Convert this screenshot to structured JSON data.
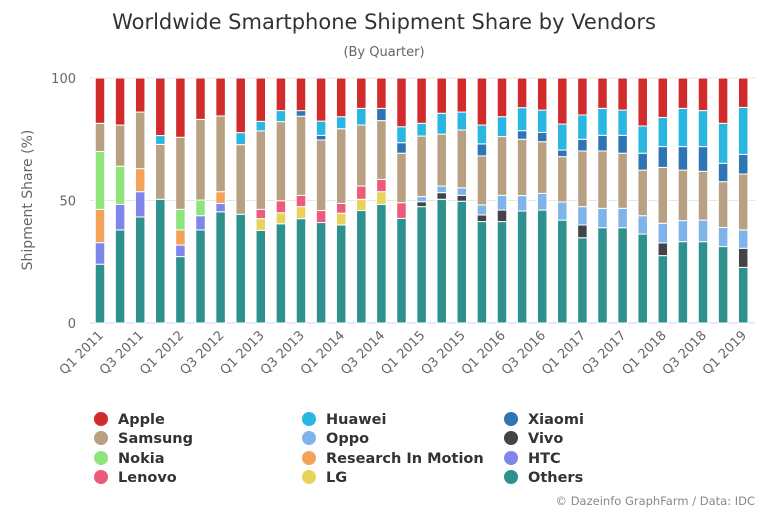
{
  "chart_data": {
    "type": "bar",
    "stacked": true,
    "title": "Worldwide Smartphone Shipment Share by Vendors",
    "subtitle": "(By Quarter)",
    "xlabel": "",
    "ylabel": "Shipment Share (%)",
    "ylim": [
      0,
      100
    ],
    "yticks": [
      "0",
      "50",
      "100"
    ],
    "grid": true,
    "legend_position": "bottom",
    "credit": "© Dazeinfo GraphFarm / Data: IDC",
    "categories": [
      "Q1 2011",
      "Q2 2011",
      "Q3 2011",
      "Q4 2011",
      "Q1 2012",
      "Q2 2012",
      "Q3 2012",
      "Q4 2012",
      "Q1 2013",
      "Q2 2013",
      "Q3 2013",
      "Q4 2013",
      "Q1 2014",
      "Q2 2014",
      "Q3 2014",
      "Q4 2014",
      "Q1 2015",
      "Q2 2015",
      "Q3 2015",
      "Q4 2015",
      "Q1 2016",
      "Q2 2016",
      "Q3 2016",
      "Q4 2016",
      "Q1 2017",
      "Q2 2017",
      "Q3 2017",
      "Q4 2017",
      "Q1 2018",
      "Q2 2018",
      "Q3 2018",
      "Q4 2018",
      "Q1 2019"
    ],
    "xtick_labels": [
      "Q1 2011",
      "Q3 2011",
      "Q1 2012",
      "Q3 2012",
      "Q1 2013",
      "Q3 2013",
      "Q1 2014",
      "Q3 2014",
      "Q1 2015",
      "Q3 2015",
      "Q1 2016",
      "Q3 2016",
      "Q1 2017",
      "Q3 2017",
      "Q1 2018",
      "Q3 2018",
      "Q1 2019"
    ],
    "series": [
      {
        "name": "Others",
        "color": "#2e918d",
        "values": [
          24,
          38,
          43.3,
          50.5,
          27.1,
          38,
          45.4,
          44.4,
          37.8,
          40.5,
          42.6,
          41,
          40,
          45.9,
          48.4,
          42.7,
          47.5,
          50.5,
          49.7,
          41.4,
          41.4,
          45.7,
          46.1,
          42,
          34.8,
          38.9,
          38.9,
          36.3,
          27.5,
          33.2,
          33.2,
          31.2,
          22.7
        ]
      },
      {
        "name": "HTC",
        "color": "#8085e9",
        "values": [
          8.8,
          10.4,
          10.3,
          0,
          4.7,
          5.8,
          3.4,
          0,
          0,
          0,
          0,
          0,
          0,
          0,
          0,
          0,
          0,
          0,
          0,
          0,
          0,
          0,
          0,
          0,
          0,
          0,
          0,
          0,
          0,
          0,
          0,
          0,
          0
        ]
      },
      {
        "name": "Research In Motion",
        "color": "#f4a25a",
        "values": [
          13.6,
          0,
          9.4,
          0,
          6.2,
          0,
          4.8,
          0,
          0,
          0,
          0,
          0,
          0,
          0,
          0,
          0,
          0,
          0,
          0,
          0,
          0,
          0,
          0,
          0,
          0,
          0,
          0,
          0,
          0,
          0,
          0,
          0,
          0
        ]
      },
      {
        "name": "Nokia",
        "color": "#8ee57a",
        "values": [
          23.6,
          15.6,
          0,
          0,
          8.4,
          6.4,
          0,
          0,
          0,
          0,
          0,
          0,
          0,
          0,
          0,
          0,
          0,
          0,
          0,
          0,
          0,
          0,
          0,
          0,
          0,
          0,
          0,
          0,
          0,
          0,
          0,
          0,
          0
        ]
      },
      {
        "name": "LG",
        "color": "#e8d35a",
        "values": [
          0,
          0,
          0,
          0,
          0,
          0,
          0,
          0,
          4.8,
          4.5,
          4.9,
          0,
          4.8,
          4.6,
          5.2,
          0,
          0,
          0,
          0,
          0,
          0,
          0,
          0,
          0,
          0,
          0,
          0,
          0,
          0,
          0,
          0,
          0,
          0
        ]
      },
      {
        "name": "Lenovo",
        "color": "#ec5a7c",
        "values": [
          0,
          0,
          0,
          0,
          0,
          0,
          0,
          0,
          3.8,
          4.9,
          4.6,
          4.9,
          4,
          5.4,
          5,
          6.4,
          0,
          0,
          0,
          0,
          0,
          0,
          0,
          0,
          0,
          0,
          0,
          0,
          0,
          0,
          0,
          0,
          0
        ]
      },
      {
        "name": "Vivo",
        "color": "#434348",
        "values": [
          0,
          0,
          0,
          0,
          0,
          0,
          0,
          0,
          0,
          0,
          0,
          0,
          0,
          0,
          0,
          0,
          2,
          2.7,
          2.4,
          2.7,
          4.7,
          0,
          0,
          0,
          5.2,
          0,
          0,
          0,
          5.2,
          0,
          0,
          0,
          7.8
        ]
      },
      {
        "name": "Oppo",
        "color": "#7eb4ea",
        "values": [
          0,
          0,
          0,
          0,
          0,
          0,
          0,
          0,
          0,
          0,
          0,
          0,
          0,
          0,
          0,
          0,
          2.1,
          2.7,
          3.1,
          4.1,
          6,
          6.3,
          6.8,
          7.4,
          7.5,
          7.9,
          7.9,
          7.5,
          8,
          8.6,
          8.8,
          7.8,
          7.5
        ]
      },
      {
        "name": "Samsung",
        "color": "#b8a083",
        "values": [
          11.5,
          16.8,
          23.1,
          22.4,
          29.4,
          32.9,
          30.9,
          28.4,
          32,
          32.3,
          32.3,
          28.8,
          30.5,
          24.9,
          24,
          20.2,
          24.7,
          21.2,
          23.6,
          20,
          24,
          23,
          21.1,
          18.5,
          22.7,
          23.4,
          22.5,
          18.6,
          22.8,
          20.6,
          19.9,
          18.7,
          22.8
        ]
      },
      {
        "name": "Xiaomi",
        "color": "#2f74b5",
        "values": [
          0,
          0,
          0,
          0,
          0,
          0,
          0,
          0,
          0,
          0,
          2.3,
          1.9,
          0,
          0,
          5,
          4.3,
          0,
          0,
          0,
          4.9,
          0,
          3.5,
          3.8,
          2.7,
          4.8,
          6.4,
          7.3,
          6.9,
          8.5,
          9.6,
          10.1,
          7.5,
          8
        ]
      },
      {
        "name": "Huawei",
        "color": "#29b6e0",
        "values": [
          0,
          0,
          0,
          3.6,
          0,
          0,
          0,
          4.9,
          3.9,
          4.5,
          0,
          5.8,
          4.9,
          6.8,
          0,
          6.5,
          5.2,
          8.5,
          7.3,
          7.7,
          8.1,
          9.4,
          9.1,
          10.6,
          9.9,
          11,
          10.3,
          11.1,
          11.9,
          15.6,
          14.7,
          16.3,
          19.2
        ]
      },
      {
        "name": "Apple",
        "color": "#d22b2b",
        "values": [
          18.5,
          19.2,
          13.9,
          23.5,
          24.2,
          16.9,
          15.5,
          22.3,
          17.7,
          13.3,
          13.3,
          17.6,
          15.8,
          12.4,
          12.4,
          19.9,
          18.5,
          14.4,
          13.9,
          19.2,
          15.8,
          12.1,
          13.1,
          18.8,
          15.1,
          12.4,
          13.1,
          19.6,
          16.1,
          12.4,
          13.3,
          18.5,
          12
        ]
      }
    ],
    "legend_order": [
      "Apple",
      "Samsung",
      "Nokia",
      "Lenovo",
      "Huawei",
      "Oppo",
      "Research In Motion",
      "LG",
      "Xiaomi",
      "Vivo",
      "HTC",
      "Others"
    ]
  }
}
